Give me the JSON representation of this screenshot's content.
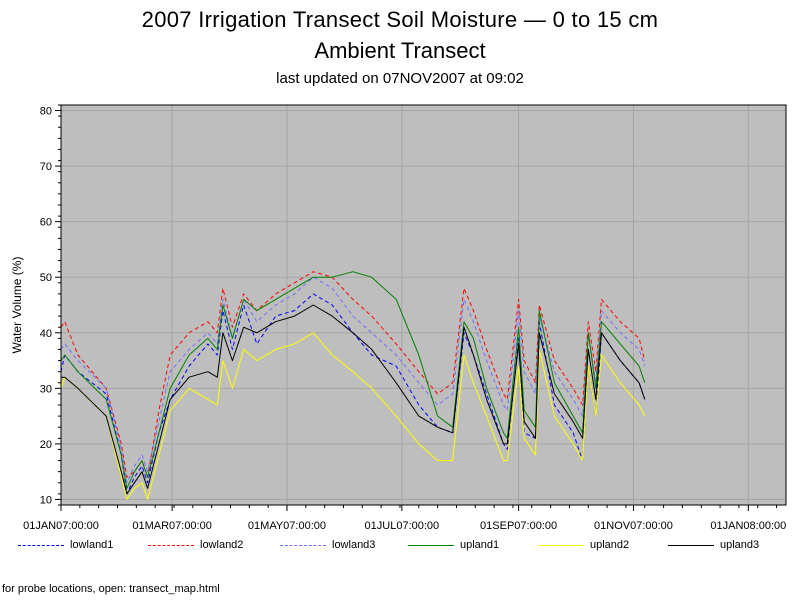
{
  "chart_data": {
    "type": "line",
    "title": "2007 Irrigation Transect Soil Moisture — 0 to 15 cm",
    "subtitle": "Ambient Transect",
    "note": "last updated on 07NOV2007 at 09:02",
    "ylabel": "Water Volume (%)",
    "xlabel": "",
    "x_type": "datetime",
    "xlim": [
      "2007-01-01",
      "2008-01-21"
    ],
    "ylim": [
      9,
      81
    ],
    "x_ticks": [
      "01JAN07:00:00",
      "01MAR07:00:00",
      "01MAY07:00:00",
      "01JUL07:00:00",
      "01SEP07:00:00",
      "01NOV07:00:00",
      "01JAN08:00:00"
    ],
    "y_ticks": [
      10,
      20,
      30,
      40,
      50,
      60,
      70,
      80
    ],
    "grid": true,
    "plot_background": "#bebebe",
    "legend_position": "bottom",
    "series": [
      {
        "name": "lowland1",
        "color": "#0000ff",
        "dash": "dashed",
        "x": [
          "2007-01-01",
          "2007-01-03",
          "2007-01-10",
          "2007-01-25",
          "2007-02-02",
          "2007-02-05",
          "2007-02-09",
          "2007-02-13",
          "2007-02-16",
          "2007-02-22",
          "2007-02-28",
          "2007-03-10",
          "2007-03-20",
          "2007-03-25",
          "2007-03-28",
          "2007-04-02",
          "2007-04-08",
          "2007-04-15",
          "2007-04-25",
          "2007-05-05",
          "2007-05-15",
          "2007-05-25",
          "2007-06-05",
          "2007-06-15",
          "2007-06-28",
          "2007-07-10",
          "2007-07-20",
          "2007-07-28",
          "2007-08-03",
          "2007-08-08",
          "2007-08-15",
          "2007-08-24",
          "2007-08-26",
          "2007-09-01",
          "2007-09-04",
          "2007-09-10",
          "2007-09-12",
          "2007-09-20",
          "2007-09-30",
          "2007-10-05",
          "2007-10-08",
          "2007-10-12",
          "2007-10-15",
          "2007-10-25",
          "2007-11-04",
          "2007-11-07"
        ],
        "y": [
          33,
          36,
          33,
          29,
          18,
          11,
          14,
          16,
          13,
          22,
          28,
          34,
          38,
          36,
          44,
          37,
          45,
          38,
          43,
          44,
          47,
          45,
          40,
          36,
          34,
          27,
          23,
          22,
          40,
          36,
          29,
          20,
          19,
          39,
          22,
          21,
          42,
          27,
          22,
          17,
          34,
          25,
          40,
          35,
          31,
          28
        ]
      },
      {
        "name": "lowland2",
        "color": "#ff0000",
        "dash": "dashed",
        "x": [
          "2007-01-01",
          "2007-01-03",
          "2007-01-10",
          "2007-01-25",
          "2007-02-02",
          "2007-02-05",
          "2007-02-09",
          "2007-02-13",
          "2007-02-16",
          "2007-02-22",
          "2007-02-28",
          "2007-03-10",
          "2007-03-20",
          "2007-03-25",
          "2007-03-28",
          "2007-04-02",
          "2007-04-08",
          "2007-04-15",
          "2007-04-25",
          "2007-05-05",
          "2007-05-15",
          "2007-05-25",
          "2007-06-05",
          "2007-06-15",
          "2007-06-28",
          "2007-07-10",
          "2007-07-20",
          "2007-07-28",
          "2007-08-03",
          "2007-08-08",
          "2007-08-15",
          "2007-08-24",
          "2007-08-26",
          "2007-09-01",
          "2007-09-04",
          "2007-09-10",
          "2007-09-12",
          "2007-09-20",
          "2007-09-30",
          "2007-10-05",
          "2007-10-08",
          "2007-10-12",
          "2007-10-15",
          "2007-10-25",
          "2007-11-04",
          "2007-11-07"
        ],
        "y": [
          41,
          42,
          36,
          30,
          20,
          14,
          15,
          17,
          14,
          26,
          36,
          40,
          42,
          40,
          48,
          41,
          47,
          44,
          47,
          49,
          51,
          50,
          46,
          43,
          38,
          33,
          29,
          31,
          48,
          44,
          37,
          29,
          28,
          46,
          35,
          31,
          45,
          35,
          30,
          27,
          42,
          33,
          46,
          42,
          39,
          35
        ]
      },
      {
        "name": "lowland3",
        "color": "#6f6fff",
        "dash": "dashed",
        "x": [
          "2007-01-01",
          "2007-01-03",
          "2007-01-10",
          "2007-01-25",
          "2007-02-02",
          "2007-02-05",
          "2007-02-09",
          "2007-02-13",
          "2007-02-16",
          "2007-02-22",
          "2007-02-28",
          "2007-03-10",
          "2007-03-20",
          "2007-03-25",
          "2007-03-28",
          "2007-04-02",
          "2007-04-08",
          "2007-04-15",
          "2007-04-25",
          "2007-05-05",
          "2007-05-15",
          "2007-05-25",
          "2007-06-05",
          "2007-06-15",
          "2007-06-28",
          "2007-07-10",
          "2007-07-20",
          "2007-07-28",
          "2007-08-03",
          "2007-08-08",
          "2007-08-15",
          "2007-08-24",
          "2007-08-26",
          "2007-09-01",
          "2007-09-04",
          "2007-09-10",
          "2007-09-12",
          "2007-09-20",
          "2007-09-30",
          "2007-10-05",
          "2007-10-08",
          "2007-10-12",
          "2007-10-15",
          "2007-10-25",
          "2007-11-04",
          "2007-11-07"
        ],
        "y": [
          37,
          38,
          35,
          30,
          19,
          13,
          16,
          18,
          15,
          24,
          33,
          37,
          40,
          38,
          46,
          39,
          46,
          42,
          45,
          47,
          50,
          48,
          43,
          40,
          36,
          31,
          27,
          29,
          46,
          42,
          35,
          27,
          26,
          44,
          33,
          29,
          43,
          33,
          28,
          25,
          40,
          31,
          44,
          40,
          37,
          34
        ]
      },
      {
        "name": "upland1",
        "color": "#008000",
        "dash": "solid",
        "x": [
          "2007-01-01",
          "2007-01-03",
          "2007-01-10",
          "2007-01-25",
          "2007-02-02",
          "2007-02-05",
          "2007-02-09",
          "2007-02-13",
          "2007-02-16",
          "2007-02-22",
          "2007-02-28",
          "2007-03-10",
          "2007-03-20",
          "2007-03-25",
          "2007-03-28",
          "2007-04-02",
          "2007-04-08",
          "2007-04-15",
          "2007-04-25",
          "2007-05-05",
          "2007-05-15",
          "2007-05-25",
          "2007-06-05",
          "2007-06-15",
          "2007-06-28",
          "2007-07-10",
          "2007-07-20",
          "2007-07-28",
          "2007-08-03",
          "2007-08-08",
          "2007-08-15",
          "2007-08-24",
          "2007-08-26",
          "2007-09-01",
          "2007-09-04",
          "2007-09-10",
          "2007-09-12",
          "2007-09-20",
          "2007-09-30",
          "2007-10-05",
          "2007-10-08",
          "2007-10-12",
          "2007-10-15",
          "2007-10-25",
          "2007-11-04",
          "2007-11-07"
        ],
        "y": [
          35,
          36,
          33,
          28,
          18,
          12,
          15,
          17,
          14,
          22,
          30,
          36,
          39,
          37,
          45,
          39,
          46,
          44,
          46,
          48,
          50,
          50,
          51,
          50,
          46,
          36,
          25,
          23,
          42,
          39,
          30,
          22,
          21,
          41,
          26,
          23,
          44,
          31,
          25,
          22,
          40,
          30,
          42,
          38,
          34,
          31
        ]
      },
      {
        "name": "upland2",
        "color": "#ffff00",
        "dash": "solid",
        "x": [
          "2007-01-01",
          "2007-01-03",
          "2007-01-10",
          "2007-01-25",
          "2007-02-02",
          "2007-02-05",
          "2007-02-09",
          "2007-02-13",
          "2007-02-16",
          "2007-02-22",
          "2007-02-28",
          "2007-03-10",
          "2007-03-20",
          "2007-03-25",
          "2007-03-28",
          "2007-04-02",
          "2007-04-08",
          "2007-04-15",
          "2007-04-25",
          "2007-05-05",
          "2007-05-15",
          "2007-05-25",
          "2007-06-05",
          "2007-06-15",
          "2007-06-28",
          "2007-07-10",
          "2007-07-20",
          "2007-07-28",
          "2007-08-03",
          "2007-08-08",
          "2007-08-15",
          "2007-08-24",
          "2007-08-26",
          "2007-09-01",
          "2007-09-04",
          "2007-09-10",
          "2007-09-12",
          "2007-09-20",
          "2007-09-30",
          "2007-10-05",
          "2007-10-08",
          "2007-10-12",
          "2007-10-15",
          "2007-10-25",
          "2007-11-04",
          "2007-11-07"
        ],
        "y": [
          30,
          32,
          30,
          25,
          14,
          10,
          12,
          13,
          10,
          18,
          26,
          30,
          28,
          27,
          35,
          30,
          37,
          35,
          37,
          38,
          40,
          36,
          33,
          30,
          25,
          20,
          17,
          17,
          36,
          31,
          25,
          17,
          17,
          34,
          21,
          18,
          37,
          25,
          20,
          17,
          34,
          25,
          36,
          31,
          27,
          25
        ]
      },
      {
        "name": "upland3",
        "color": "#000000",
        "dash": "solid",
        "x": [
          "2007-01-01",
          "2007-01-03",
          "2007-01-10",
          "2007-01-25",
          "2007-02-02",
          "2007-02-05",
          "2007-02-09",
          "2007-02-13",
          "2007-02-16",
          "2007-02-22",
          "2007-02-28",
          "2007-03-10",
          "2007-03-20",
          "2007-03-25",
          "2007-03-28",
          "2007-04-02",
          "2007-04-08",
          "2007-04-15",
          "2007-04-25",
          "2007-05-05",
          "2007-05-15",
          "2007-05-25",
          "2007-06-05",
          "2007-06-15",
          "2007-06-28",
          "2007-07-10",
          "2007-07-20",
          "2007-07-28",
          "2007-08-03",
          "2007-08-08",
          "2007-08-15",
          "2007-08-24",
          "2007-08-26",
          "2007-09-01",
          "2007-09-04",
          "2007-09-10",
          "2007-09-12",
          "2007-09-20",
          "2007-09-30",
          "2007-10-05",
          "2007-10-08",
          "2007-10-12",
          "2007-10-15",
          "2007-10-25",
          "2007-11-04",
          "2007-11-07"
        ],
        "y": [
          32,
          32,
          30,
          25,
          15,
          11,
          13,
          15,
          12,
          20,
          28,
          32,
          33,
          32,
          40,
          35,
          41,
          40,
          42,
          43,
          45,
          43,
          40,
          37,
          31,
          25,
          23,
          22,
          41,
          36,
          28,
          20,
          20,
          38,
          24,
          21,
          40,
          29,
          24,
          21,
          37,
          28,
          40,
          35,
          31,
          28
        ]
      }
    ]
  },
  "footer": {
    "text": "for probe locations, open:  transect_map.html"
  }
}
